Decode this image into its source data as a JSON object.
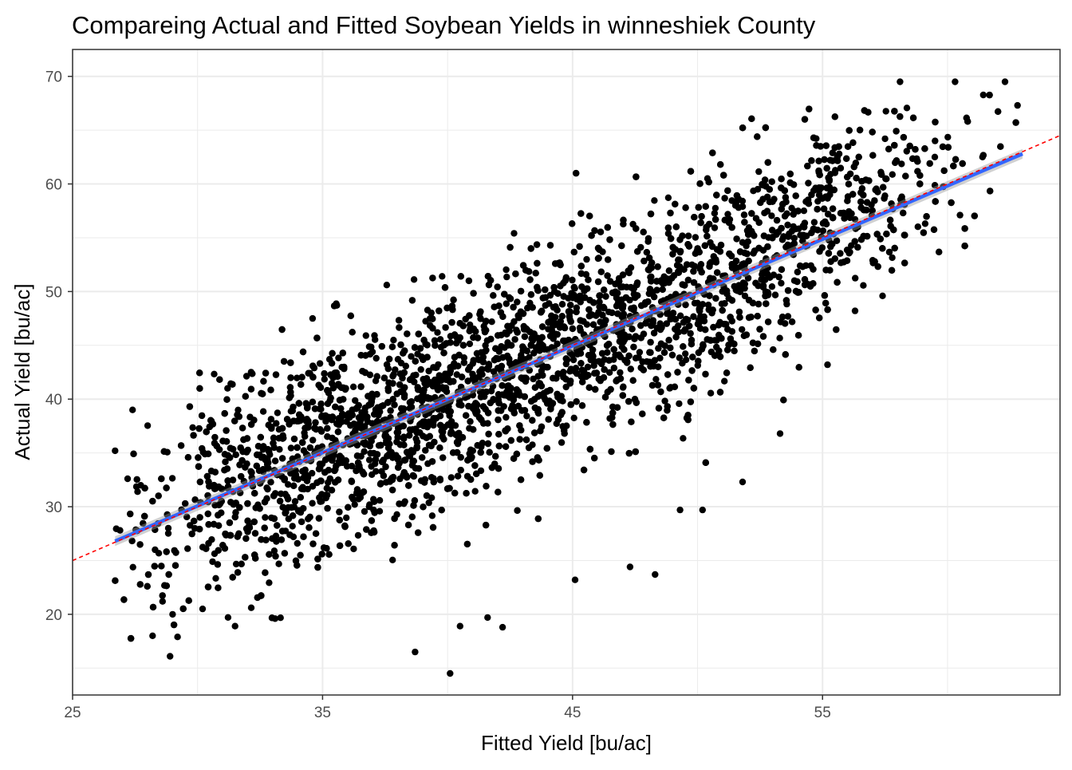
{
  "chart_data": {
    "type": "scatter",
    "title": "Compareing Actual and Fitted Soybean Yields in winneshiek County",
    "xlabel": "Fitted Yield [bu/ac]",
    "ylabel": "Actual Yield [bu/ac]",
    "xlim": [
      25,
      64.5
    ],
    "ylim": [
      12.5,
      72.5
    ],
    "x_ticks": [
      25,
      35,
      45,
      55
    ],
    "y_ticks": [
      20,
      30,
      40,
      50,
      60,
      70
    ],
    "x_minor_ticks": [
      30,
      40,
      50,
      60
    ],
    "y_minor_ticks": [
      15,
      25,
      35,
      45,
      55,
      65
    ],
    "grid": true,
    "legend": "none",
    "n_points_approx": 5000,
    "series": [
      {
        "kind": "points",
        "color": "#000000",
        "approximate": true,
        "x_range": [
          26.7,
          63
        ],
        "y_range": [
          14.5,
          69.5
        ],
        "outlier_points": [
          [
            26.7,
            35.2
          ],
          [
            27.2,
            32.6
          ],
          [
            27.4,
            39.0
          ],
          [
            27.6,
            31.4
          ],
          [
            28.3,
            26.0
          ],
          [
            28.6,
            21.2
          ],
          [
            28.2,
            18.0
          ],
          [
            29.0,
            20.0
          ],
          [
            28.9,
            16.1
          ],
          [
            29.2,
            17.9
          ],
          [
            29.6,
            26.1
          ],
          [
            30.2,
            20.5
          ],
          [
            31.5,
            18.9
          ],
          [
            33.1,
            19.6
          ],
          [
            38.7,
            16.5
          ],
          [
            40.1,
            14.5
          ],
          [
            40.5,
            18.9
          ],
          [
            41.6,
            19.7
          ],
          [
            42.2,
            18.8
          ],
          [
            45.1,
            23.2
          ],
          [
            47.3,
            24.4
          ],
          [
            48.3,
            23.7
          ],
          [
            49.3,
            29.7
          ],
          [
            50.2,
            29.7
          ],
          [
            51.8,
            32.3
          ],
          [
            53.3,
            36.8
          ],
          [
            58.1,
            69.5
          ],
          [
            60.3,
            69.5
          ],
          [
            62.3,
            69.5
          ],
          [
            62.8,
            67.3
          ],
          [
            57.5,
            64.2
          ],
          [
            59.5,
            64.0
          ],
          [
            61.4,
            62.5
          ],
          [
            60.5,
            57.1
          ],
          [
            56.3,
            48.2
          ],
          [
            55.2,
            43.2
          ],
          [
            57.4,
            49.6
          ],
          [
            26.9,
            27.8
          ],
          [
            31.2,
            41.0
          ],
          [
            34.6,
            47.5
          ]
        ],
        "cloud": {
          "relation": "y = x",
          "residual_sd": 4.8,
          "x_density": [
            [
              26.7,
              0.05
            ],
            [
              29,
              0.25
            ],
            [
              32,
              0.8
            ],
            [
              36,
              1.15
            ],
            [
              40,
              1.1
            ],
            [
              44,
              1.05
            ],
            [
              48,
              1.0
            ],
            [
              52,
              0.9
            ],
            [
              55,
              0.7
            ],
            [
              58,
              0.3
            ],
            [
              60,
              0.1
            ],
            [
              63,
              0.02
            ]
          ]
        }
      },
      {
        "kind": "smooth-line",
        "method": "lm",
        "color": "#3366ff",
        "band_color": "#999999",
        "x": [
          26.7,
          63
        ],
        "y": [
          26.8,
          62.8
        ],
        "se": [
          0.45,
          0.45
        ]
      },
      {
        "kind": "reference-line",
        "color": "#ff0000",
        "style": "dashed",
        "intercept": 0,
        "slope": 1
      }
    ]
  }
}
